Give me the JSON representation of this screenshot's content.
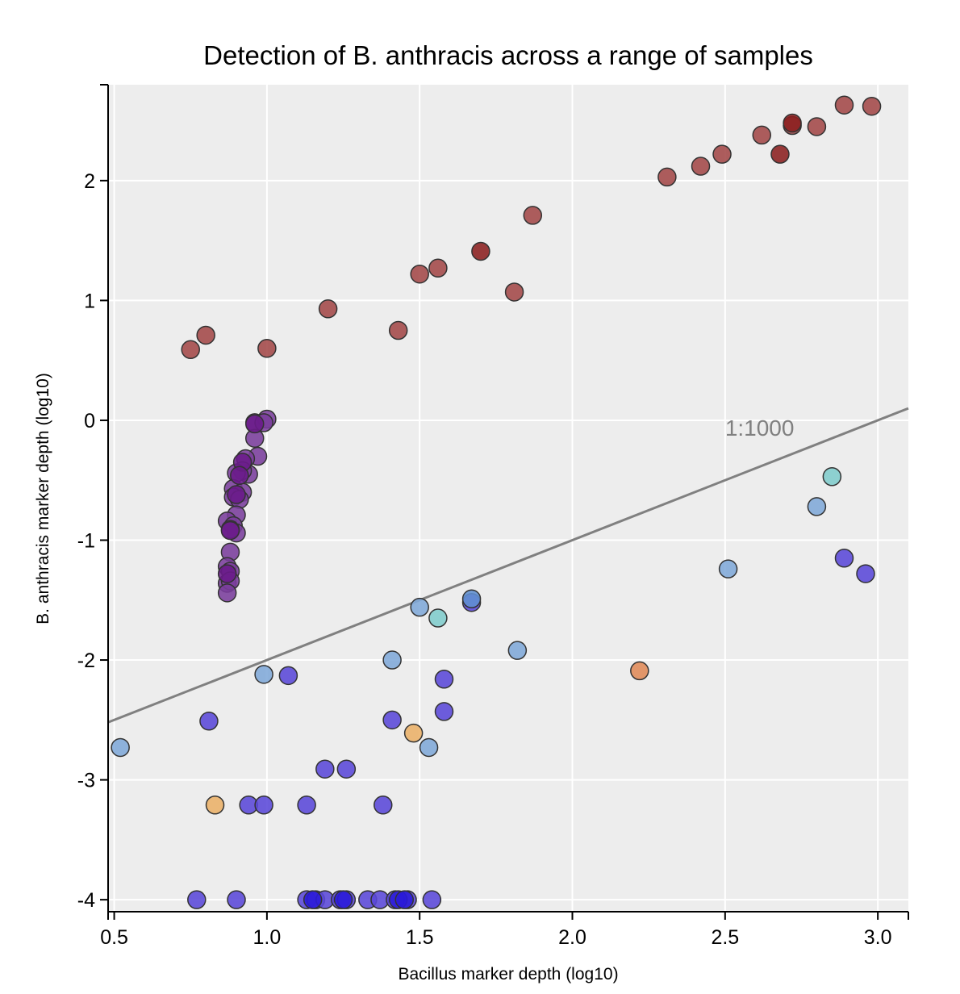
{
  "chart_data": {
    "type": "scatter",
    "title": "Detection of B. anthracis across a range of samples",
    "xlabel": "Bacillus marker depth (log10)",
    "ylabel": "B. anthracis marker depth (log10)",
    "xlim": [
      0.48,
      3.1
    ],
    "ylim": [
      -4.1,
      2.8
    ],
    "x_ticks": [
      0.5,
      1.0,
      1.5,
      2.0,
      2.5,
      3.0
    ],
    "x_tick_labels": [
      "0.5",
      "1.0",
      "1.5",
      "2.0",
      "2.5",
      "3.0"
    ],
    "y_ticks": [
      -4,
      -3,
      -2,
      -1,
      0,
      1,
      2
    ],
    "y_tick_labels": [
      "-4",
      "-3",
      "-2",
      "-1",
      "0",
      "1",
      "2"
    ],
    "grid": true,
    "background": "#ededed",
    "reference_line": {
      "label": "1:1000",
      "points": [
        [
          0.48,
          -2.52
        ],
        [
          3.1,
          0.1
        ]
      ],
      "color": "#808080"
    },
    "point_colors": {
      "red": "#a34848",
      "darkred": "#8b1f1f",
      "purple": "#7a3d9c",
      "darkpurple": "#6a1a8a",
      "blue": "#5a48d8",
      "darkblue": "#2a1ad8",
      "lightblue": "#80a8d8",
      "cyan": "#80cccc",
      "orange": "#eab068",
      "darkorange": "#e08a58",
      "steel": "#6090d0"
    },
    "series": [
      {
        "color_key": "red",
        "points": [
          [
            0.75,
            0.59
          ],
          [
            0.8,
            0.71
          ],
          [
            1.0,
            0.6
          ],
          [
            1.2,
            0.93
          ],
          [
            1.43,
            0.75
          ],
          [
            1.5,
            1.22
          ],
          [
            1.56,
            1.27
          ],
          [
            1.81,
            1.07
          ],
          [
            1.87,
            1.71
          ],
          [
            2.31,
            2.03
          ],
          [
            2.42,
            2.12
          ],
          [
            2.49,
            2.22
          ],
          [
            2.62,
            2.38
          ],
          [
            2.72,
            2.46
          ],
          [
            2.8,
            2.45
          ],
          [
            2.89,
            2.63
          ],
          [
            2.98,
            2.62
          ]
        ]
      },
      {
        "color_key": "darkred",
        "points": [
          [
            1.7,
            1.41
          ],
          [
            2.68,
            2.22
          ],
          [
            2.72,
            2.48
          ]
        ]
      },
      {
        "color_key": "purple",
        "points": [
          [
            0.96,
            -0.02
          ],
          [
            1.0,
            0.01
          ],
          [
            0.99,
            -0.02
          ],
          [
            0.96,
            -0.15
          ],
          [
            0.97,
            -0.3
          ],
          [
            0.93,
            -0.32
          ],
          [
            0.94,
            -0.45
          ],
          [
            0.92,
            -0.42
          ],
          [
            0.9,
            -0.44
          ],
          [
            0.89,
            -0.57
          ],
          [
            0.92,
            -0.6
          ],
          [
            0.89,
            -0.64
          ],
          [
            0.91,
            -0.66
          ],
          [
            0.9,
            -0.79
          ],
          [
            0.87,
            -0.84
          ],
          [
            0.89,
            -0.88
          ],
          [
            0.9,
            -0.94
          ],
          [
            0.88,
            -0.91
          ],
          [
            0.88,
            -1.1
          ],
          [
            0.87,
            -1.22
          ],
          [
            0.88,
            -1.26
          ],
          [
            0.87,
            -1.36
          ],
          [
            0.88,
            -1.34
          ],
          [
            0.87,
            -1.44
          ]
        ]
      },
      {
        "color_key": "darkpurple",
        "points": [
          [
            0.96,
            -0.03
          ],
          [
            0.92,
            -0.35
          ],
          [
            0.91,
            -0.46
          ],
          [
            0.9,
            -0.62
          ],
          [
            0.88,
            -0.92
          ],
          [
            0.87,
            -1.28
          ]
        ]
      },
      {
        "color_key": "blue",
        "points": [
          [
            1.67,
            -1.52
          ],
          [
            1.07,
            -2.13
          ],
          [
            1.58,
            -2.16
          ],
          [
            0.81,
            -2.51
          ],
          [
            1.41,
            -2.5
          ],
          [
            1.58,
            -2.43
          ],
          [
            1.19,
            -2.91
          ],
          [
            1.26,
            -2.91
          ],
          [
            0.94,
            -3.21
          ],
          [
            0.99,
            -3.21
          ],
          [
            1.13,
            -3.21
          ],
          [
            1.38,
            -3.21
          ],
          [
            2.89,
            -1.15
          ],
          [
            2.96,
            -1.28
          ],
          [
            0.77,
            -4.0
          ],
          [
            0.9,
            -4.0
          ],
          [
            1.13,
            -4.0
          ],
          [
            1.16,
            -4.0
          ],
          [
            1.19,
            -4.0
          ],
          [
            1.24,
            -4.0
          ],
          [
            1.26,
            -4.0
          ],
          [
            1.33,
            -4.0
          ],
          [
            1.37,
            -4.0
          ],
          [
            1.42,
            -4.0
          ],
          [
            1.46,
            -4.0
          ],
          [
            1.54,
            -4.0
          ]
        ]
      },
      {
        "color_key": "darkblue",
        "points": [
          [
            1.15,
            -4.0
          ],
          [
            1.25,
            -4.0
          ],
          [
            1.43,
            -4.0
          ],
          [
            1.45,
            -4.0
          ]
        ]
      },
      {
        "color_key": "lightblue",
        "points": [
          [
            0.52,
            -2.73
          ],
          [
            0.99,
            -2.12
          ],
          [
            1.41,
            -2.0
          ],
          [
            1.5,
            -1.56
          ],
          [
            1.53,
            -2.73
          ],
          [
            1.82,
            -1.92
          ],
          [
            2.51,
            -1.24
          ],
          [
            2.8,
            -0.72
          ]
        ]
      },
      {
        "color_key": "steel",
        "points": [
          [
            1.67,
            -1.49
          ]
        ]
      },
      {
        "color_key": "cyan",
        "points": [
          [
            1.56,
            -1.65
          ],
          [
            2.85,
            -0.47
          ]
        ]
      },
      {
        "color_key": "orange",
        "points": [
          [
            0.83,
            -3.21
          ],
          [
            1.48,
            -2.61
          ]
        ]
      },
      {
        "color_key": "darkorange",
        "points": [
          [
            2.22,
            -2.09
          ]
        ]
      }
    ]
  }
}
